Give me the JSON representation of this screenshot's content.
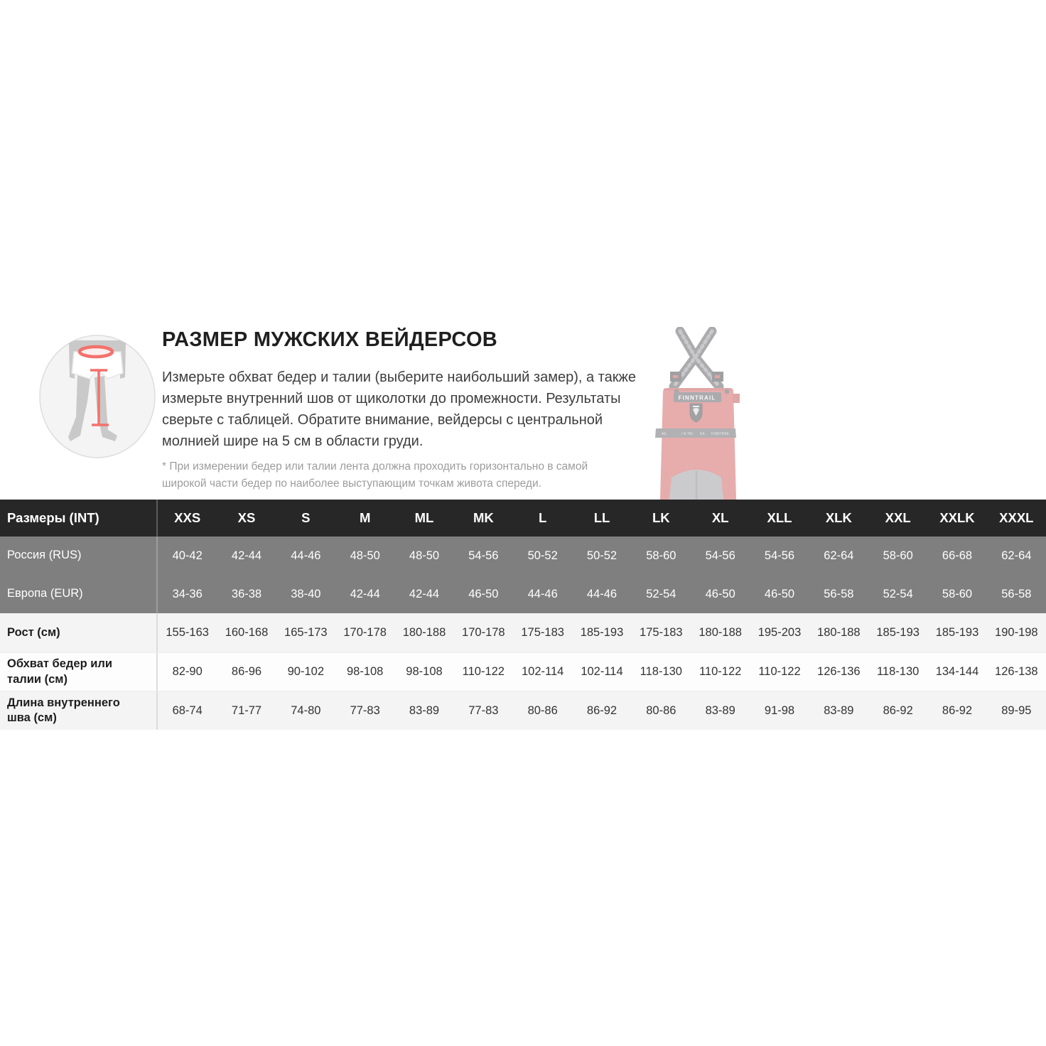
{
  "intro": {
    "title": "РАЗМЕР МУЖСКИХ ВЕЙДЕРСОВ",
    "description": "Измерьте обхват бедер и талии (выберите наибольший замер), а также измерьте внутренний шов от щиколотки до промежности. Результаты сверьте с таблицей. Обратите внимание, вейдерсы с центральной молнией шире на 5 см в области груди.",
    "footnote": "* При измерении бедер или талии лента должна проходить горизонтально в самой широкой части бедер по наиболее выступающим точкам живота спереди."
  },
  "product_image": {
    "brand": "FINNTRAIL",
    "body_color": "#cc4848",
    "accent_color": "#f4716b"
  },
  "table": {
    "rows": [
      {
        "key": "sizes-int",
        "label": "Размеры (INT)",
        "values": [
          "XXS",
          "XS",
          "S",
          "M",
          "ML",
          "MK",
          "L",
          "LL",
          "LK",
          "XL",
          "XLL",
          "XLK",
          "XXL",
          "XXLK",
          "XXXL"
        ]
      },
      {
        "key": "russia-rus",
        "label": "Россия (RUS)",
        "values": [
          "40-42",
          "42-44",
          "44-46",
          "48-50",
          "48-50",
          "54-56",
          "50-52",
          "50-52",
          "58-60",
          "54-56",
          "54-56",
          "62-64",
          "58-60",
          "66-68",
          "62-64"
        ]
      },
      {
        "key": "europe-eur",
        "label": "Европа (EUR)",
        "values": [
          "34-36",
          "36-38",
          "38-40",
          "42-44",
          "42-44",
          "46-50",
          "44-46",
          "44-46",
          "52-54",
          "46-50",
          "46-50",
          "56-58",
          "52-54",
          "58-60",
          "56-58"
        ]
      },
      {
        "key": "rost",
        "label": "Рост (см)",
        "values": [
          "155-163",
          "160-168",
          "165-173",
          "170-178",
          "180-188",
          "170-178",
          "175-183",
          "185-193",
          "175-183",
          "180-188",
          "195-203",
          "180-188",
          "185-193",
          "185-193",
          "190-198"
        ]
      },
      {
        "key": "obhvat",
        "label": "Обхват бедер или талии (см)",
        "values": [
          "82-90",
          "86-96",
          "90-102",
          "98-108",
          "98-108",
          "110-122",
          "102-114",
          "102-114",
          "118-130",
          "110-122",
          "110-122",
          "126-136",
          "118-130",
          "134-144",
          "126-138"
        ]
      },
      {
        "key": "dlina",
        "label": "Длина внутреннего шва (см)",
        "values": [
          "68-74",
          "71-77",
          "74-80",
          "77-83",
          "83-89",
          "77-83",
          "80-86",
          "86-92",
          "80-86",
          "83-89",
          "91-98",
          "83-89",
          "86-92",
          "86-92",
          "89-95"
        ]
      }
    ]
  }
}
